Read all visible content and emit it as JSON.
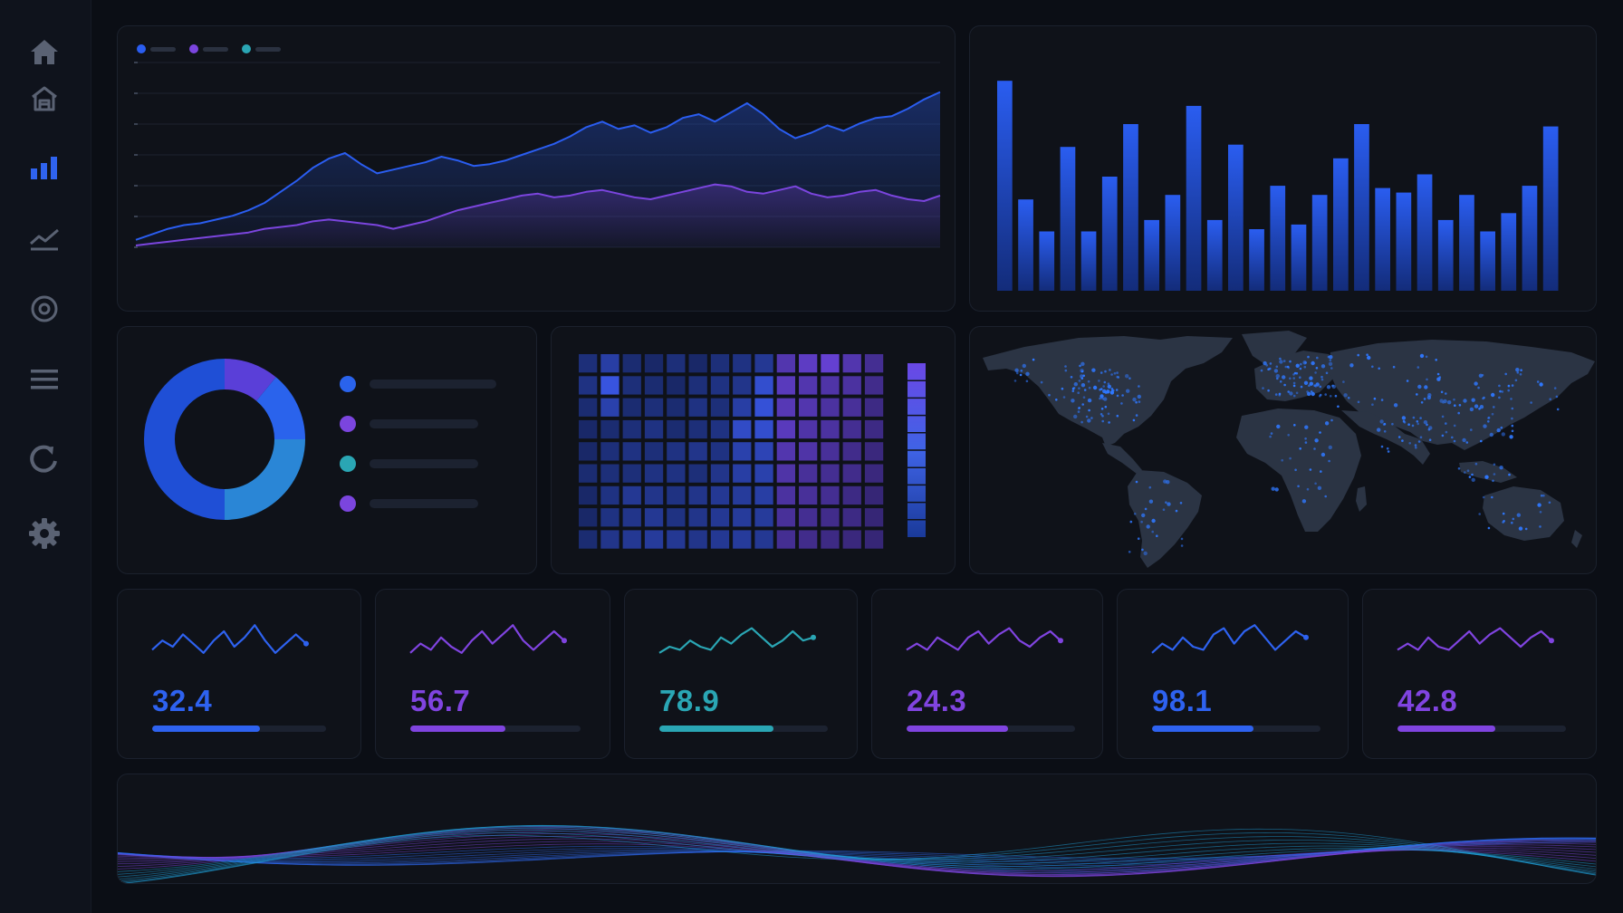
{
  "colors": {
    "background": "#0b0e15",
    "panel": "#0f1219",
    "blue": "#2a5df0",
    "purple": "#7b45de",
    "teal": "#2aa6b4",
    "sidebar_icon": "#5a6273",
    "sidebar_active": "#2f63ef"
  },
  "sidebar": {
    "items": [
      {
        "icon": "home-icon",
        "active": false
      },
      {
        "icon": "building-icon",
        "active": false
      },
      {
        "icon": "bar-chart-icon",
        "active": true
      },
      {
        "icon": "line-chart-icon",
        "active": false
      },
      {
        "icon": "target-icon",
        "active": false
      },
      {
        "icon": "menu-icon",
        "active": false
      },
      {
        "icon": "refresh-icon",
        "active": false
      },
      {
        "icon": "gear-icon",
        "active": false
      }
    ]
  },
  "chart_data": [
    {
      "type": "area",
      "legend_position": "top-left",
      "grid": true,
      "x": [
        0,
        1,
        2,
        3,
        4,
        5,
        6,
        7,
        8,
        9,
        10,
        11,
        12,
        13,
        14,
        15,
        16,
        17,
        18,
        19,
        20,
        21,
        22,
        23,
        24,
        25,
        26,
        27,
        28,
        29,
        30,
        31,
        32,
        33,
        34,
        35,
        36,
        37,
        38,
        39,
        40,
        41,
        42,
        43,
        44,
        45,
        46,
        47,
        48,
        49,
        50
      ],
      "ylim": [
        0,
        100
      ],
      "series": [
        {
          "color": "#2a5df0",
          "values": [
            4,
            7,
            10,
            12,
            13,
            15,
            17,
            20,
            24,
            30,
            36,
            43,
            48,
            51,
            45,
            40,
            42,
            44,
            46,
            49,
            47,
            44,
            45,
            47,
            50,
            53,
            56,
            60,
            65,
            68,
            64,
            66,
            62,
            65,
            70,
            72,
            68,
            73,
            78,
            72,
            64,
            59,
            62,
            66,
            63,
            67,
            70,
            71,
            75,
            80,
            84
          ]
        },
        {
          "color": "#7b45de",
          "values": [
            1,
            2,
            3,
            4,
            5,
            6,
            7,
            8,
            10,
            11,
            12,
            14,
            15,
            14,
            13,
            12,
            10,
            12,
            14,
            17,
            20,
            22,
            24,
            26,
            28,
            29,
            27,
            28,
            30,
            31,
            29,
            27,
            26,
            28,
            30,
            32,
            34,
            33,
            30,
            29,
            31,
            33,
            29,
            27,
            28,
            30,
            31,
            28,
            26,
            25,
            28
          ]
        }
      ]
    },
    {
      "type": "bar",
      "ylim": [
        0,
        100
      ],
      "color": "#1f4fd8",
      "values": [
        92,
        40,
        26,
        63,
        26,
        50,
        73,
        31,
        42,
        81,
        31,
        64,
        27,
        46,
        29,
        42,
        58,
        73,
        45,
        43,
        51,
        31,
        42,
        26,
        34,
        46,
        72
      ]
    },
    {
      "type": "pie",
      "donut": true,
      "slices": [
        {
          "value": 11,
          "color": "#5a3fd8"
        },
        {
          "value": 14,
          "color": "#2a63ec"
        },
        {
          "value": 25,
          "color": "#2a86d6"
        },
        {
          "value": 50,
          "color": "#1f4fd6"
        }
      ]
    },
    {
      "type": "heatmap",
      "rows": 9,
      "cols": 14,
      "values": [
        [
          0.3,
          0.55,
          0.25,
          0.2,
          0.3,
          0.2,
          0.3,
          0.35,
          0.45,
          0.6,
          0.75,
          0.85,
          0.6,
          0.4
        ],
        [
          0.35,
          0.9,
          0.3,
          0.25,
          0.2,
          0.3,
          0.35,
          0.4,
          0.8,
          0.7,
          0.6,
          0.55,
          0.5,
          0.35
        ],
        [
          0.25,
          0.6,
          0.25,
          0.3,
          0.25,
          0.35,
          0.3,
          0.55,
          0.85,
          0.65,
          0.6,
          0.5,
          0.45,
          0.3
        ],
        [
          0.2,
          0.25,
          0.3,
          0.35,
          0.25,
          0.3,
          0.35,
          0.75,
          0.8,
          0.7,
          0.55,
          0.5,
          0.4,
          0.3
        ],
        [
          0.2,
          0.3,
          0.35,
          0.3,
          0.35,
          0.4,
          0.35,
          0.6,
          0.65,
          0.6,
          0.55,
          0.45,
          0.35,
          0.25
        ],
        [
          0.25,
          0.3,
          0.3,
          0.35,
          0.35,
          0.3,
          0.4,
          0.55,
          0.6,
          0.55,
          0.45,
          0.4,
          0.35,
          0.25
        ],
        [
          0.2,
          0.35,
          0.45,
          0.4,
          0.35,
          0.4,
          0.45,
          0.5,
          0.55,
          0.5,
          0.45,
          0.4,
          0.3,
          0.2
        ],
        [
          0.2,
          0.35,
          0.4,
          0.45,
          0.35,
          0.4,
          0.45,
          0.5,
          0.5,
          0.45,
          0.4,
          0.35,
          0.3,
          0.2
        ],
        [
          0.25,
          0.4,
          0.45,
          0.5,
          0.45,
          0.4,
          0.45,
          0.5,
          0.45,
          0.4,
          0.35,
          0.3,
          0.25,
          0.2
        ]
      ]
    }
  ],
  "legend_area": [
    {
      "color": "#2a5df0"
    },
    {
      "color": "#7b45de"
    },
    {
      "color": "#2aa6b4"
    }
  ],
  "legend_donut": [
    {
      "color": "#2a63ec"
    },
    {
      "color": "#7b45de"
    },
    {
      "color": "#2aa6b4"
    },
    {
      "color": "#7b45de"
    }
  ],
  "map": {
    "continent_color": "#2b3444",
    "dot_color": "#2f78ff"
  },
  "kpis": [
    {
      "value": "32.4",
      "color": "#2e62f0",
      "progress": 0.62,
      "spark": [
        8,
        14,
        10,
        18,
        12,
        6,
        14,
        20,
        10,
        16,
        24,
        14,
        6,
        12,
        18,
        12
      ]
    },
    {
      "value": "56.7",
      "color": "#8044e0",
      "progress": 0.56,
      "spark": [
        6,
        12,
        8,
        16,
        10,
        6,
        14,
        20,
        12,
        18,
        24,
        14,
        8,
        14,
        20,
        14
      ]
    },
    {
      "value": "78.9",
      "color": "#2aa6b4",
      "progress": 0.68,
      "spark": [
        6,
        10,
        8,
        14,
        10,
        8,
        16,
        12,
        18,
        22,
        16,
        10,
        14,
        20,
        14,
        16
      ]
    },
    {
      "value": "24.3",
      "color": "#8044e0",
      "progress": 0.6,
      "spark": [
        8,
        12,
        8,
        16,
        12,
        8,
        16,
        20,
        12,
        18,
        22,
        14,
        10,
        16,
        20,
        14
      ]
    },
    {
      "value": "98.1",
      "color": "#2e62f0",
      "progress": 0.6,
      "spark": [
        6,
        12,
        8,
        16,
        10,
        8,
        18,
        22,
        12,
        20,
        24,
        16,
        8,
        14,
        20,
        16
      ]
    },
    {
      "value": "42.8",
      "color": "#8044e0",
      "progress": 0.58,
      "spark": [
        8,
        12,
        8,
        16,
        10,
        8,
        14,
        20,
        12,
        18,
        22,
        16,
        10,
        16,
        20,
        14
      ]
    }
  ],
  "wave": {
    "colors": [
      "#2f6cf5",
      "#7b45de",
      "#1fa0d8"
    ]
  }
}
